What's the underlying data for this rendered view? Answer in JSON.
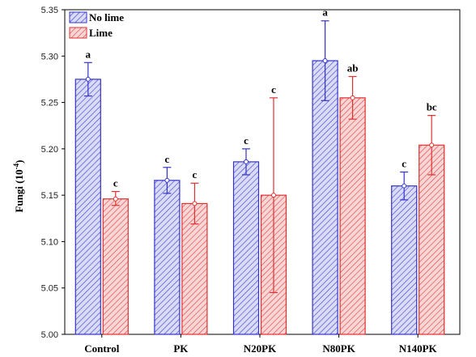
{
  "chart_data": {
    "type": "bar",
    "title": "",
    "xlabel": "",
    "ylabel": "Fungi (10",
    "ylabel_exponent": "-4",
    "ylabel_suffix": ")",
    "ylim": [
      5.0,
      5.35
    ],
    "yticks": [
      "5.00",
      "5.05",
      "5.10",
      "5.15",
      "5.20",
      "5.25",
      "5.30",
      "5.35"
    ],
    "ytick_values": [
      5.0,
      5.05,
      5.1,
      5.15,
      5.2,
      5.25,
      5.3,
      5.35
    ],
    "categories": [
      "Control",
      "PK",
      "N20PK",
      "N80PK",
      "N140PK"
    ],
    "legend_position": "top-left",
    "grid": false,
    "series": [
      {
        "name": "No lime",
        "color": "#3333cc",
        "fill": "#d6d8f5",
        "hatch": "diagonal",
        "values": [
          5.275,
          5.166,
          5.186,
          5.295,
          5.16
        ],
        "error_low": [
          5.257,
          5.152,
          5.172,
          5.252,
          5.145
        ],
        "error_high": [
          5.293,
          5.18,
          5.2,
          5.338,
          5.175
        ],
        "labels": [
          "a",
          "c",
          "c",
          "a",
          "c"
        ]
      },
      {
        "name": "Lime",
        "color": "#e03030",
        "fill": "#f7d2d2",
        "hatch": "diagonal",
        "values": [
          5.146,
          5.141,
          5.15,
          5.255,
          5.204
        ],
        "error_low": [
          5.139,
          5.119,
          5.045,
          5.232,
          5.172
        ],
        "error_high": [
          5.154,
          5.163,
          5.255,
          5.278,
          5.236
        ],
        "labels": [
          "c",
          "c",
          "c",
          "ab",
          "bc"
        ]
      }
    ]
  }
}
